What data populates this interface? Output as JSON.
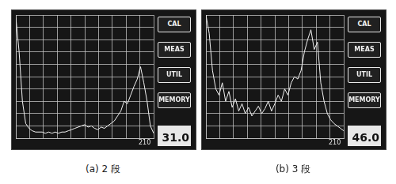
{
  "chart_data": [
    {
      "type": "line",
      "x": [
        0,
        5,
        10,
        15,
        20,
        25,
        30,
        35,
        40,
        45,
        50,
        55,
        60,
        65,
        70,
        75,
        80,
        85,
        90,
        95,
        100,
        105,
        110,
        115,
        120,
        125,
        130,
        135,
        140,
        145,
        150,
        155,
        160,
        165,
        170,
        175,
        180,
        185,
        190,
        195,
        200,
        205,
        210
      ],
      "values": [
        98,
        70,
        30,
        12,
        8,
        6,
        5,
        5,
        5,
        4,
        5,
        4,
        5,
        4,
        5,
        5,
        6,
        7,
        8,
        9,
        10,
        11,
        9,
        10,
        8,
        7,
        9,
        8,
        10,
        12,
        14,
        18,
        22,
        30,
        28,
        35,
        42,
        48,
        58,
        45,
        30,
        10,
        4
      ],
      "color": "#f2f2f2",
      "xlim": [
        0,
        210
      ],
      "xticks": [
        0,
        21,
        42,
        63,
        84,
        105,
        126,
        147,
        168,
        189,
        210
      ],
      "ylim": [
        0,
        100
      ],
      "yticks": [
        0,
        10,
        20,
        30,
        40,
        50,
        60,
        70,
        80,
        90,
        100
      ],
      "grid": true,
      "tick_labels": false
    },
    {
      "type": "line",
      "x": [
        0,
        5,
        10,
        15,
        20,
        25,
        30,
        35,
        40,
        45,
        50,
        55,
        60,
        65,
        70,
        75,
        80,
        85,
        90,
        95,
        100,
        105,
        110,
        115,
        120,
        125,
        130,
        135,
        140,
        145,
        150,
        155,
        160,
        165,
        170,
        175,
        180,
        185,
        190,
        195,
        200,
        205,
        210
      ],
      "values": [
        100,
        85,
        55,
        40,
        35,
        45,
        30,
        38,
        25,
        32,
        22,
        28,
        20,
        25,
        18,
        22,
        26,
        20,
        24,
        30,
        22,
        28,
        35,
        30,
        40,
        35,
        45,
        50,
        48,
        55,
        70,
        80,
        88,
        72,
        78,
        45,
        30,
        20,
        15,
        12,
        10,
        8,
        6
      ],
      "color": "#f2f2f2",
      "xlim": [
        0,
        210
      ],
      "xticks": [
        0,
        21,
        42,
        63,
        84,
        105,
        126,
        147,
        168,
        189,
        210
      ],
      "ylim": [
        0,
        100
      ],
      "yticks": [
        0,
        10,
        20,
        30,
        40,
        50,
        60,
        70,
        80,
        90,
        100
      ],
      "grid": true,
      "tick_labels": false
    }
  ],
  "panels": [
    {
      "caption": "(a) 2 段",
      "buttons": [
        "CAL",
        "MEAS",
        "UTIL",
        "MEMORY"
      ],
      "readout": "31.0",
      "range_label": "210"
    },
    {
      "caption": "(b) 3 段",
      "buttons": [
        "CAL",
        "MEAS",
        "UTIL",
        "MEMORY"
      ],
      "readout": "46.0",
      "range_label": "210"
    }
  ]
}
